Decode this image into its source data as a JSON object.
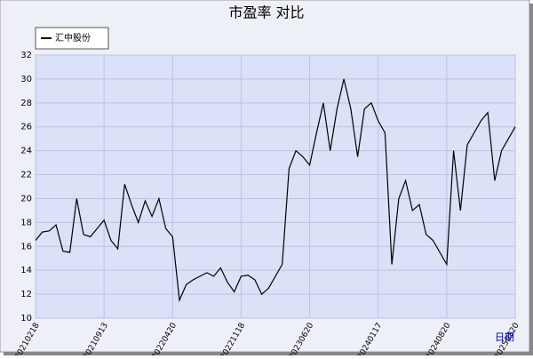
{
  "chart_data": {
    "type": "line",
    "title": "市盈率  对比",
    "x_label": "日期",
    "categories": [
      "20210218",
      null,
      null,
      null,
      null,
      null,
      null,
      null,
      null,
      null,
      "20210913",
      null,
      null,
      null,
      null,
      null,
      null,
      null,
      null,
      null,
      "20220420",
      null,
      null,
      null,
      null,
      null,
      null,
      null,
      null,
      null,
      "20221118",
      null,
      null,
      null,
      null,
      null,
      null,
      null,
      null,
      null,
      "20230620",
      null,
      null,
      null,
      null,
      null,
      null,
      null,
      null,
      null,
      "20240117",
      null,
      null,
      null,
      null,
      null,
      null,
      null,
      null,
      null,
      "20240820",
      null,
      null,
      null,
      null,
      null,
      null,
      null,
      null,
      null,
      "20250320"
    ],
    "series": [
      {
        "name": "汇中股份",
        "color": "#000000",
        "values": [
          16.5,
          17.2,
          17.3,
          17.8,
          15.6,
          15.5,
          20.0,
          17.0,
          16.8,
          17.5,
          18.2,
          16.5,
          15.8,
          21.2,
          19.5,
          18.0,
          19.8,
          18.5,
          20.0,
          17.5,
          16.8,
          11.5,
          12.8,
          13.2,
          13.5,
          13.8,
          13.5,
          14.2,
          13.0,
          12.2,
          13.5,
          13.6,
          13.2,
          12.0,
          12.5,
          13.5,
          14.5,
          22.5,
          24.0,
          23.5,
          22.8,
          25.5,
          28.0,
          24.0,
          27.5,
          30.0,
          27.5,
          23.5,
          27.5,
          28.0,
          26.5,
          25.5,
          14.5,
          20.0,
          21.5,
          19.0,
          19.5,
          17.0,
          16.5,
          15.5,
          14.5,
          24.0,
          19.0,
          24.5,
          25.5,
          26.5,
          27.2,
          21.5,
          24.0,
          25.0,
          26.0
        ]
      }
    ],
    "ylim": [
      10,
      32
    ],
    "yticks": [
      10,
      12,
      14,
      16,
      18,
      20,
      22,
      24,
      26,
      28,
      30,
      32
    ],
    "grid": true,
    "legend": "top-left"
  }
}
